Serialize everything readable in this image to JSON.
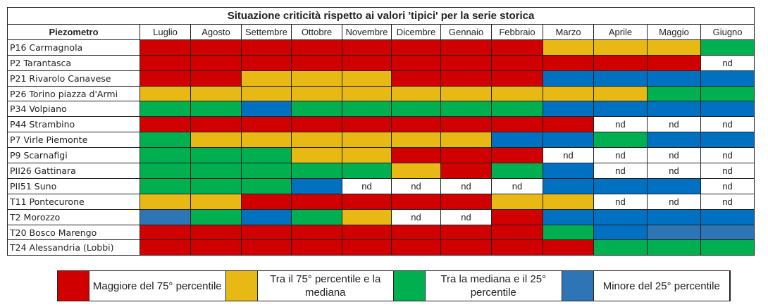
{
  "chart_data": {
    "type": "heatmap",
    "title": "Situazione criticità rispetto ai valori 'tipici' per la serie storica",
    "row_header": "Piezometro",
    "columns": [
      "Luglio",
      "Agosto",
      "Settembre",
      "Ottobre",
      "Novembre",
      "Dicembre",
      "Gennaio",
      "Febbraio",
      "Marzo",
      "Aprile",
      "Maggio",
      "Giugno"
    ],
    "categories_legend": {
      "R": {
        "label": "Maggiore del 75° percentile",
        "color": "#d10000"
      },
      "Y": {
        "label": "Tra il 75° percentile e la mediana",
        "color": "#e8b915"
      },
      "G": {
        "label": "Tra la mediana e il 25° percentile",
        "color": "#00b050"
      },
      "B": {
        "label": "Minore del 25° percentile",
        "color": "#0070c0"
      },
      "B2": {
        "label": "Minore del 25° percentile",
        "color": "#2e75b6"
      },
      "N": {
        "label": "nd",
        "color": "#ffffff"
      }
    },
    "nd_text": "nd",
    "rows": [
      {
        "name": "P16 Carmagnola",
        "values": [
          "R",
          "R",
          "R",
          "R",
          "R",
          "R",
          "R",
          "R",
          "Y",
          "Y",
          "Y",
          "G"
        ]
      },
      {
        "name": "P2 Tarantasca",
        "values": [
          "R",
          "R",
          "R",
          "R",
          "R",
          "R",
          "R",
          "R",
          "R",
          "R",
          "R",
          "N"
        ]
      },
      {
        "name": "P21 Rivarolo Canavese",
        "values": [
          "R",
          "R",
          "Y",
          "Y",
          "Y",
          "R",
          "R",
          "R",
          "B",
          "B",
          "B",
          "B"
        ]
      },
      {
        "name": "P26 Torino piazza d'Armi",
        "values": [
          "Y",
          "Y",
          "Y",
          "Y",
          "Y",
          "Y",
          "Y",
          "Y",
          "Y",
          "Y",
          "G",
          "G"
        ]
      },
      {
        "name": "P34 Volpiano",
        "values": [
          "G",
          "G",
          "B",
          "G",
          "G",
          "G",
          "G",
          "G",
          "B",
          "B",
          "B",
          "B"
        ]
      },
      {
        "name": "P44 Strambino",
        "values": [
          "R",
          "R",
          "R",
          "R",
          "R",
          "R",
          "R",
          "R",
          "R",
          "N",
          "N",
          "N"
        ]
      },
      {
        "name": "P7 Virle Piemonte",
        "values": [
          "G",
          "Y",
          "Y",
          "Y",
          "Y",
          "Y",
          "Y",
          "B",
          "B",
          "G",
          "B",
          "B"
        ]
      },
      {
        "name": "P9 Scarnafigi",
        "values": [
          "G",
          "G",
          "G",
          "Y",
          "Y",
          "R",
          "R",
          "R",
          "N",
          "N",
          "N",
          "N"
        ]
      },
      {
        "name": "PII26 Gattinara",
        "values": [
          "G",
          "G",
          "G",
          "G",
          "G",
          "Y",
          "R",
          "G",
          "B",
          "N",
          "N",
          "N"
        ]
      },
      {
        "name": "PII51 Suno",
        "values": [
          "G",
          "G",
          "G",
          "B",
          "N",
          "N",
          "N",
          "N",
          "B",
          "B",
          "B",
          "N"
        ]
      },
      {
        "name": "T11 Pontecurone",
        "values": [
          "Y",
          "Y",
          "R",
          "R",
          "R",
          "R",
          "R",
          "Y",
          "Y",
          "N",
          "N",
          "N"
        ]
      },
      {
        "name": "T2 Morozzo",
        "values": [
          "B2",
          "G",
          "B",
          "G",
          "Y",
          "N",
          "N",
          "R",
          "B",
          "B",
          "B",
          "B"
        ]
      },
      {
        "name": "T20 Bosco Marengo",
        "values": [
          "R",
          "R",
          "R",
          "R",
          "R",
          "R",
          "R",
          "R",
          "G",
          "B",
          "B2",
          "B2"
        ]
      },
      {
        "name": "T24 Alessandria (Lobbi)",
        "values": [
          "R",
          "R",
          "R",
          "R",
          "R",
          "R",
          "R",
          "R",
          "R",
          "G",
          "G",
          "G"
        ]
      }
    ],
    "legend": [
      {
        "key": "R",
        "label": "Maggiore del 75° percentile"
      },
      {
        "key": "Y",
        "label": "Tra il 75° percentile e la mediana"
      },
      {
        "key": "G",
        "label": "Tra la mediana e il 25° percentile"
      },
      {
        "key": "B2",
        "label": "Minore del 25° percentile"
      }
    ],
    "legend_placement": "bottom"
  }
}
